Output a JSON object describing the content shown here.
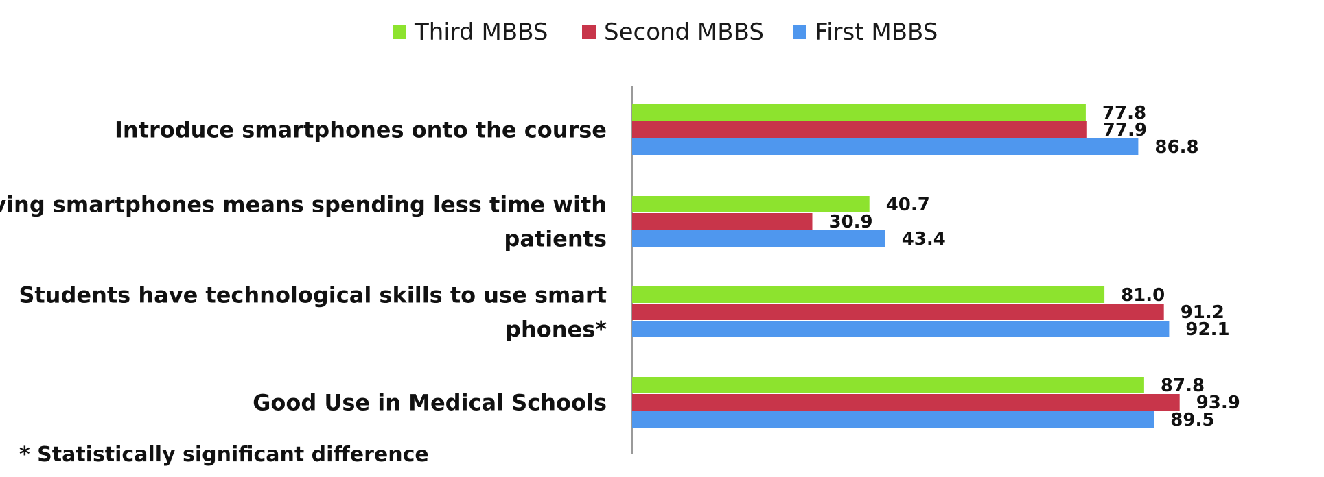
{
  "chart_data": {
    "type": "bar",
    "orientation": "horizontal",
    "categories": [
      [
        "Introduce smartphones onto the course"
      ],
      [
        "Having smartphones means spending less time with",
        "patients"
      ],
      [
        "Students have technological skills to use smart",
        "phones*"
      ],
      [
        "Good Use in Medical Schools"
      ]
    ],
    "series": [
      {
        "name": "Third MBBS",
        "color": "#8de32e",
        "values": [
          77.8,
          40.7,
          81.0,
          87.8
        ]
      },
      {
        "name": "Second MBBS",
        "color": "#c8354a",
        "values": [
          77.9,
          30.9,
          91.2,
          93.9
        ]
      },
      {
        "name": "First MBBS",
        "color": "#4f97ee",
        "values": [
          86.8,
          43.4,
          92.1,
          89.5
        ]
      }
    ],
    "data_labels": [
      [
        "77.8",
        "40.7",
        "81.0",
        "87.8"
      ],
      [
        "77.9",
        "30.9",
        "91.2",
        "93.9"
      ],
      [
        "86.8",
        "43.4",
        "92.1",
        "89.5"
      ]
    ],
    "xlim": [
      0,
      100
    ],
    "grid": false,
    "legend_position": "top",
    "footnote": "* Statistically significant difference"
  }
}
